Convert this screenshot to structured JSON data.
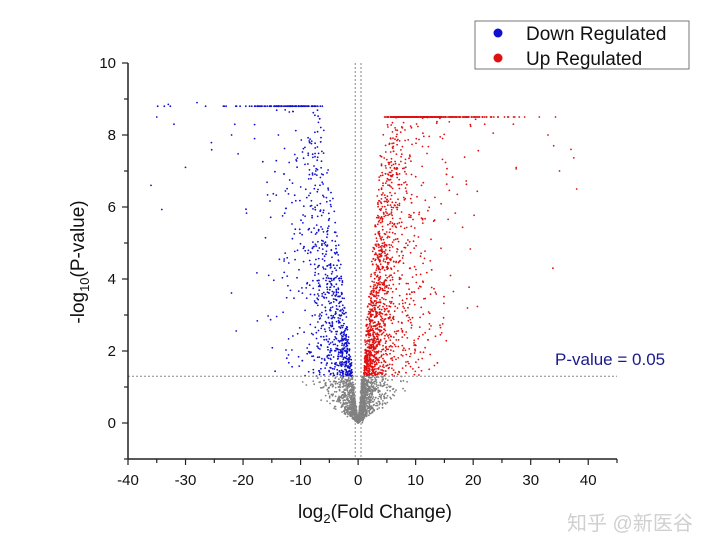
{
  "chart_data": {
    "type": "scatter",
    "title": "",
    "xlabel_main": "log",
    "xlabel_sub": "2",
    "xlabel_rest": "(Fold Change)",
    "ylabel_pre": "-log",
    "ylabel_sub": "10",
    "ylabel_rest": "(P-value)",
    "xlim": [
      -40,
      45
    ],
    "ylim": [
      -1,
      10
    ],
    "xticks": [
      "-40",
      "-30",
      "-20",
      "-10",
      "0",
      "10",
      "20",
      "30",
      "40"
    ],
    "yticks": [
      "0",
      "2",
      "4",
      "6",
      "8",
      "10"
    ],
    "grid": false,
    "legend_position": "top-right",
    "threshold_y": 1.3,
    "threshold_label": "P-value = 0.05",
    "threshold_x": [
      -0.5,
      0.5
    ],
    "series": [
      {
        "name": "Down Regulated",
        "color": "#1010d0",
        "x_range": [
          -35,
          -1
        ],
        "y_range": [
          1.3,
          8.8
        ]
      },
      {
        "name": "Up Regulated",
        "color": "#e01010",
        "x_range": [
          1,
          38
        ],
        "y_range": [
          1.3,
          8.5
        ]
      },
      {
        "name": "",
        "color": "#808080",
        "x_range": [
          -15,
          16
        ],
        "y_range": [
          0,
          1.3
        ]
      }
    ],
    "outliers_down": [
      [
        -33,
        8.85
      ],
      [
        -35,
        8.5
      ],
      [
        -32,
        8.3
      ],
      [
        -28,
        8.9
      ],
      [
        -22,
        8.0
      ],
      [
        -18,
        7.9
      ],
      [
        -30,
        7.1
      ],
      [
        -36,
        6.6
      ]
    ],
    "outliers_up": [
      [
        28,
        8.5
      ],
      [
        27,
        8.3
      ],
      [
        22,
        8.3
      ],
      [
        33,
        8.0
      ],
      [
        34,
        7.7
      ],
      [
        37,
        7.6
      ],
      [
        35,
        7.0
      ],
      [
        38,
        6.5
      ]
    ]
  },
  "watermark": "知乎 @新医谷"
}
